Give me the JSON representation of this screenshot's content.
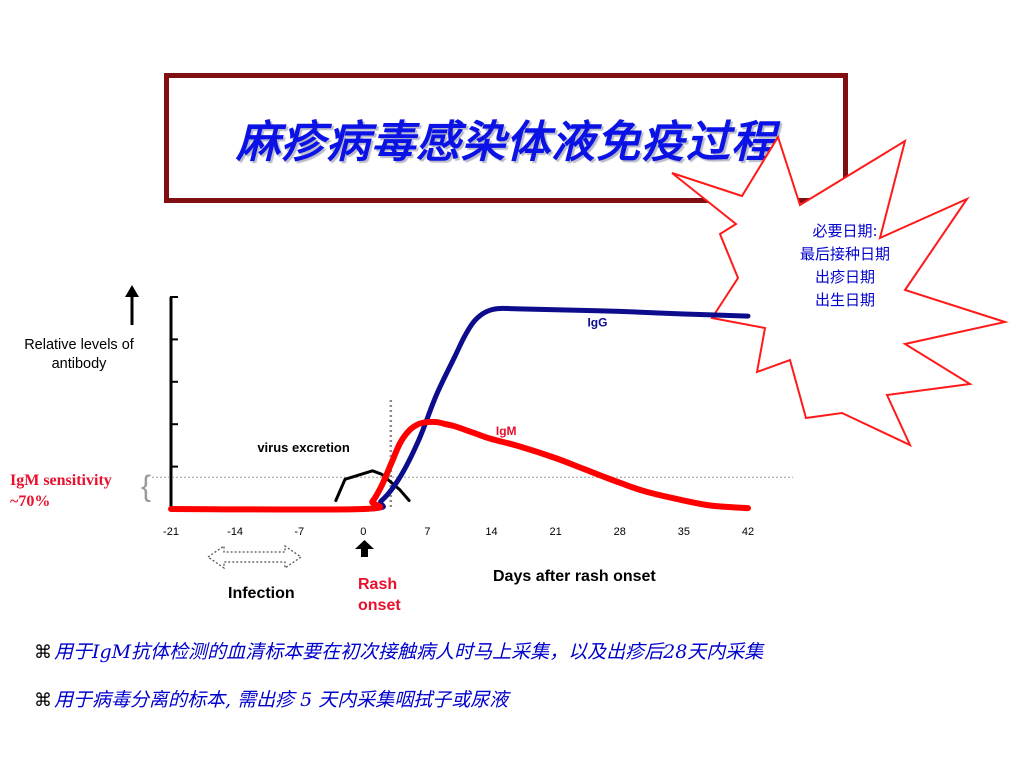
{
  "slide": {
    "title": "麻疹病毒感染体液免疫过程",
    "callout": [
      "必要日期:",
      "最后接种日期",
      "出疹日期",
      "出生日期"
    ],
    "bullets": [
      "用于IgM抗体检测的血清标本要在初次接触病人时马上采集，以及出疹后28天内采集",
      "用于病毒分离的标本, 需出疹 5 天内采集咽拭子或尿液"
    ],
    "bullet_symbol": "⌘"
  },
  "chart_data": {
    "type": "line",
    "title": "",
    "xlabel": "Days after rash onset",
    "ylabel": "Relative levels of antibody",
    "xlim": [
      -21,
      42
    ],
    "ylim": [
      0,
      5
    ],
    "xticks": [
      "-21",
      "-14",
      "-7",
      "0",
      "7",
      "14",
      "21",
      "28",
      "35",
      "42"
    ],
    "series": [
      {
        "name": "IgG",
        "color": "#0c0c8c",
        "x": [
          -21,
          0,
          2,
          4,
          6,
          8,
          10,
          11,
          12,
          13,
          14,
          15,
          17,
          21,
          28,
          35,
          42
        ],
        "y": [
          0,
          0,
          0.2,
          0.75,
          1.6,
          2.7,
          3.6,
          4.05,
          4.4,
          4.6,
          4.7,
          4.73,
          4.72,
          4.7,
          4.66,
          4.6,
          4.55
        ]
      },
      {
        "name": "IgM",
        "color": "#ff0000",
        "x": [
          -21,
          0,
          1,
          2,
          3,
          4,
          5,
          6,
          7,
          8,
          9,
          10,
          12,
          14,
          17,
          21,
          24,
          28,
          31,
          35,
          38,
          42
        ],
        "y": [
          0,
          0,
          0.18,
          0.55,
          1.05,
          1.55,
          1.85,
          2.0,
          2.05,
          2.05,
          2.0,
          1.95,
          1.8,
          1.65,
          1.48,
          1.2,
          0.95,
          0.62,
          0.4,
          0.2,
          0.08,
          0.02
        ]
      },
      {
        "name": "virus excretion",
        "color": "#000000",
        "x": [
          -3,
          -2,
          1,
          2,
          4,
          5
        ],
        "y": [
          0.2,
          0.7,
          0.9,
          0.82,
          0.45,
          0.2
        ]
      }
    ],
    "annotations": [
      {
        "text": "IgG",
        "x": 26,
        "y": 4.3
      },
      {
        "text": "IgM",
        "x": 16,
        "y": 1.75
      },
      {
        "text": "virus excretion",
        "x": 0,
        "y": 1.35
      }
    ],
    "reference_lines": {
      "horizontal_y": 0.75,
      "vertical_x": 3
    },
    "labels": {
      "igm_sensitivity": [
        "IgM sensitivity",
        "~70%"
      ],
      "brace": "{",
      "infection": "Infection",
      "rash_onset": [
        "Rash",
        "onset"
      ],
      "y_label_lines": [
        "Relative levels of",
        "antibody"
      ]
    }
  }
}
